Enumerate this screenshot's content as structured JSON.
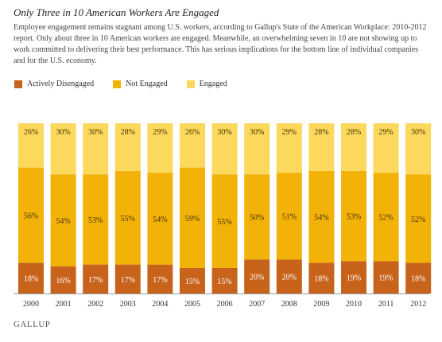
{
  "title": "Only Three in 10 American Workers Are Engaged",
  "description": "Employee engagement remains stagnant among U.S. workers, according to Gallup's State of the American Workplace: 2010-2012 report. Only about three in 10 American workers are engaged. Meanwhile, an overwhelming seven in 10 are not showing up to work committed to delivering their best performance. This has serious implications for the bottom line of individual companies and for the U.S. economy.",
  "brand": "GALLUP",
  "colors": {
    "actively_disengaged": "#C8631C",
    "not_engaged": "#F2B208",
    "engaged": "#FCD95C"
  },
  "legend": {
    "actively_disengaged": "Actively Disengaged",
    "not_engaged": "Not Engaged",
    "engaged": "Engaged"
  },
  "chart_data": {
    "type": "bar",
    "stacked": true,
    "categories": [
      "2000",
      "2001",
      "2002",
      "2003",
      "2004",
      "2005",
      "2006",
      "2007",
      "2008",
      "2009",
      "2010",
      "2011",
      "2012"
    ],
    "series": [
      {
        "name": "Actively Disengaged",
        "values": [
          18,
          16,
          17,
          17,
          17,
          15,
          15,
          20,
          20,
          18,
          19,
          19,
          18
        ]
      },
      {
        "name": "Not Engaged",
        "values": [
          56,
          54,
          53,
          55,
          54,
          59,
          55,
          50,
          51,
          54,
          53,
          52,
          52
        ]
      },
      {
        "name": "Engaged",
        "values": [
          26,
          30,
          30,
          28,
          29,
          26,
          30,
          30,
          29,
          28,
          28,
          29,
          30
        ]
      }
    ],
    "value_suffix": "%",
    "legend_position": "top-left",
    "grid": false
  }
}
